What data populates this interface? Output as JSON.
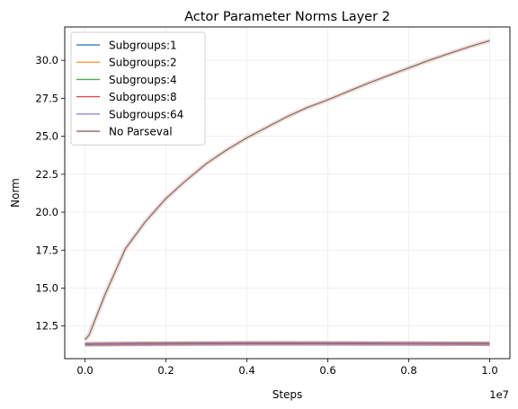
{
  "chart_data": {
    "type": "line",
    "title": "Actor Parameter Norms Layer 2",
    "xlabel": "Steps",
    "ylabel": "Norm",
    "x_offset_label": "1e7",
    "xlim": [
      -0.05,
      1.05
    ],
    "ylim": [
      10.35,
      32.2
    ],
    "xticks": [
      0.0,
      0.2,
      0.4,
      0.6,
      0.8,
      1.0
    ],
    "xtick_labels": [
      "0.0",
      "0.2",
      "0.4",
      "0.6",
      "0.8",
      "1.0"
    ],
    "yticks": [
      12.5,
      15.0,
      17.5,
      20.0,
      22.5,
      25.0,
      27.5,
      30.0
    ],
    "ytick_labels": [
      "12.5",
      "15.0",
      "17.5",
      "20.0",
      "22.5",
      "25.0",
      "27.5",
      "30.0"
    ],
    "grid": true,
    "legend_position": "top-left",
    "series": [
      {
        "name": "Subgroups:1",
        "color": "#1f77b4",
        "x": [
          0.0,
          0.1,
          0.2,
          0.3,
          0.4,
          0.5,
          0.6,
          0.7,
          0.8,
          0.9,
          1.0
        ],
        "y": [
          11.3,
          11.33,
          11.35,
          11.36,
          11.37,
          11.37,
          11.36,
          11.36,
          11.35,
          11.35,
          11.34
        ]
      },
      {
        "name": "Subgroups:2",
        "color": "#ff7f0e",
        "x": [
          0.0,
          0.1,
          0.2,
          0.3,
          0.4,
          0.5,
          0.6,
          0.7,
          0.8,
          0.9,
          1.0
        ],
        "y": [
          11.3,
          11.33,
          11.34,
          11.35,
          11.36,
          11.36,
          11.36,
          11.35,
          11.35,
          11.34,
          11.34
        ]
      },
      {
        "name": "Subgroups:4",
        "color": "#2ca02c",
        "x": [
          0.0,
          0.1,
          0.2,
          0.3,
          0.4,
          0.5,
          0.6,
          0.7,
          0.8,
          0.9,
          1.0
        ],
        "y": [
          11.3,
          11.32,
          11.34,
          11.35,
          11.35,
          11.36,
          11.35,
          11.35,
          11.34,
          11.34,
          11.33
        ]
      },
      {
        "name": "Subgroups:8",
        "color": "#d62728",
        "x": [
          0.0,
          0.1,
          0.2,
          0.3,
          0.4,
          0.5,
          0.6,
          0.7,
          0.8,
          0.9,
          1.0
        ],
        "y": [
          11.3,
          11.32,
          11.33,
          11.34,
          11.35,
          11.35,
          11.35,
          11.34,
          11.34,
          11.33,
          11.33
        ]
      },
      {
        "name": "Subgroups:64",
        "color": "#9467bd",
        "x": [
          0.0,
          0.1,
          0.2,
          0.3,
          0.4,
          0.5,
          0.6,
          0.7,
          0.8,
          0.9,
          1.0
        ],
        "y": [
          11.3,
          11.31,
          11.32,
          11.33,
          11.34,
          11.34,
          11.34,
          11.33,
          11.33,
          11.32,
          11.32
        ]
      },
      {
        "name": "No Parseval",
        "color": "#8c564b",
        "x": [
          0.0,
          0.01,
          0.05,
          0.1,
          0.15,
          0.2,
          0.25,
          0.3,
          0.35,
          0.4,
          0.45,
          0.5,
          0.55,
          0.6,
          0.65,
          0.7,
          0.75,
          0.8,
          0.85,
          0.9,
          0.95,
          1.0
        ],
        "y": [
          11.6,
          11.9,
          14.6,
          17.6,
          19.4,
          20.9,
          22.1,
          23.2,
          24.1,
          24.9,
          25.6,
          26.3,
          26.9,
          27.4,
          27.95,
          28.5,
          29.0,
          29.5,
          30.0,
          30.45,
          30.9,
          31.3
        ]
      }
    ]
  }
}
